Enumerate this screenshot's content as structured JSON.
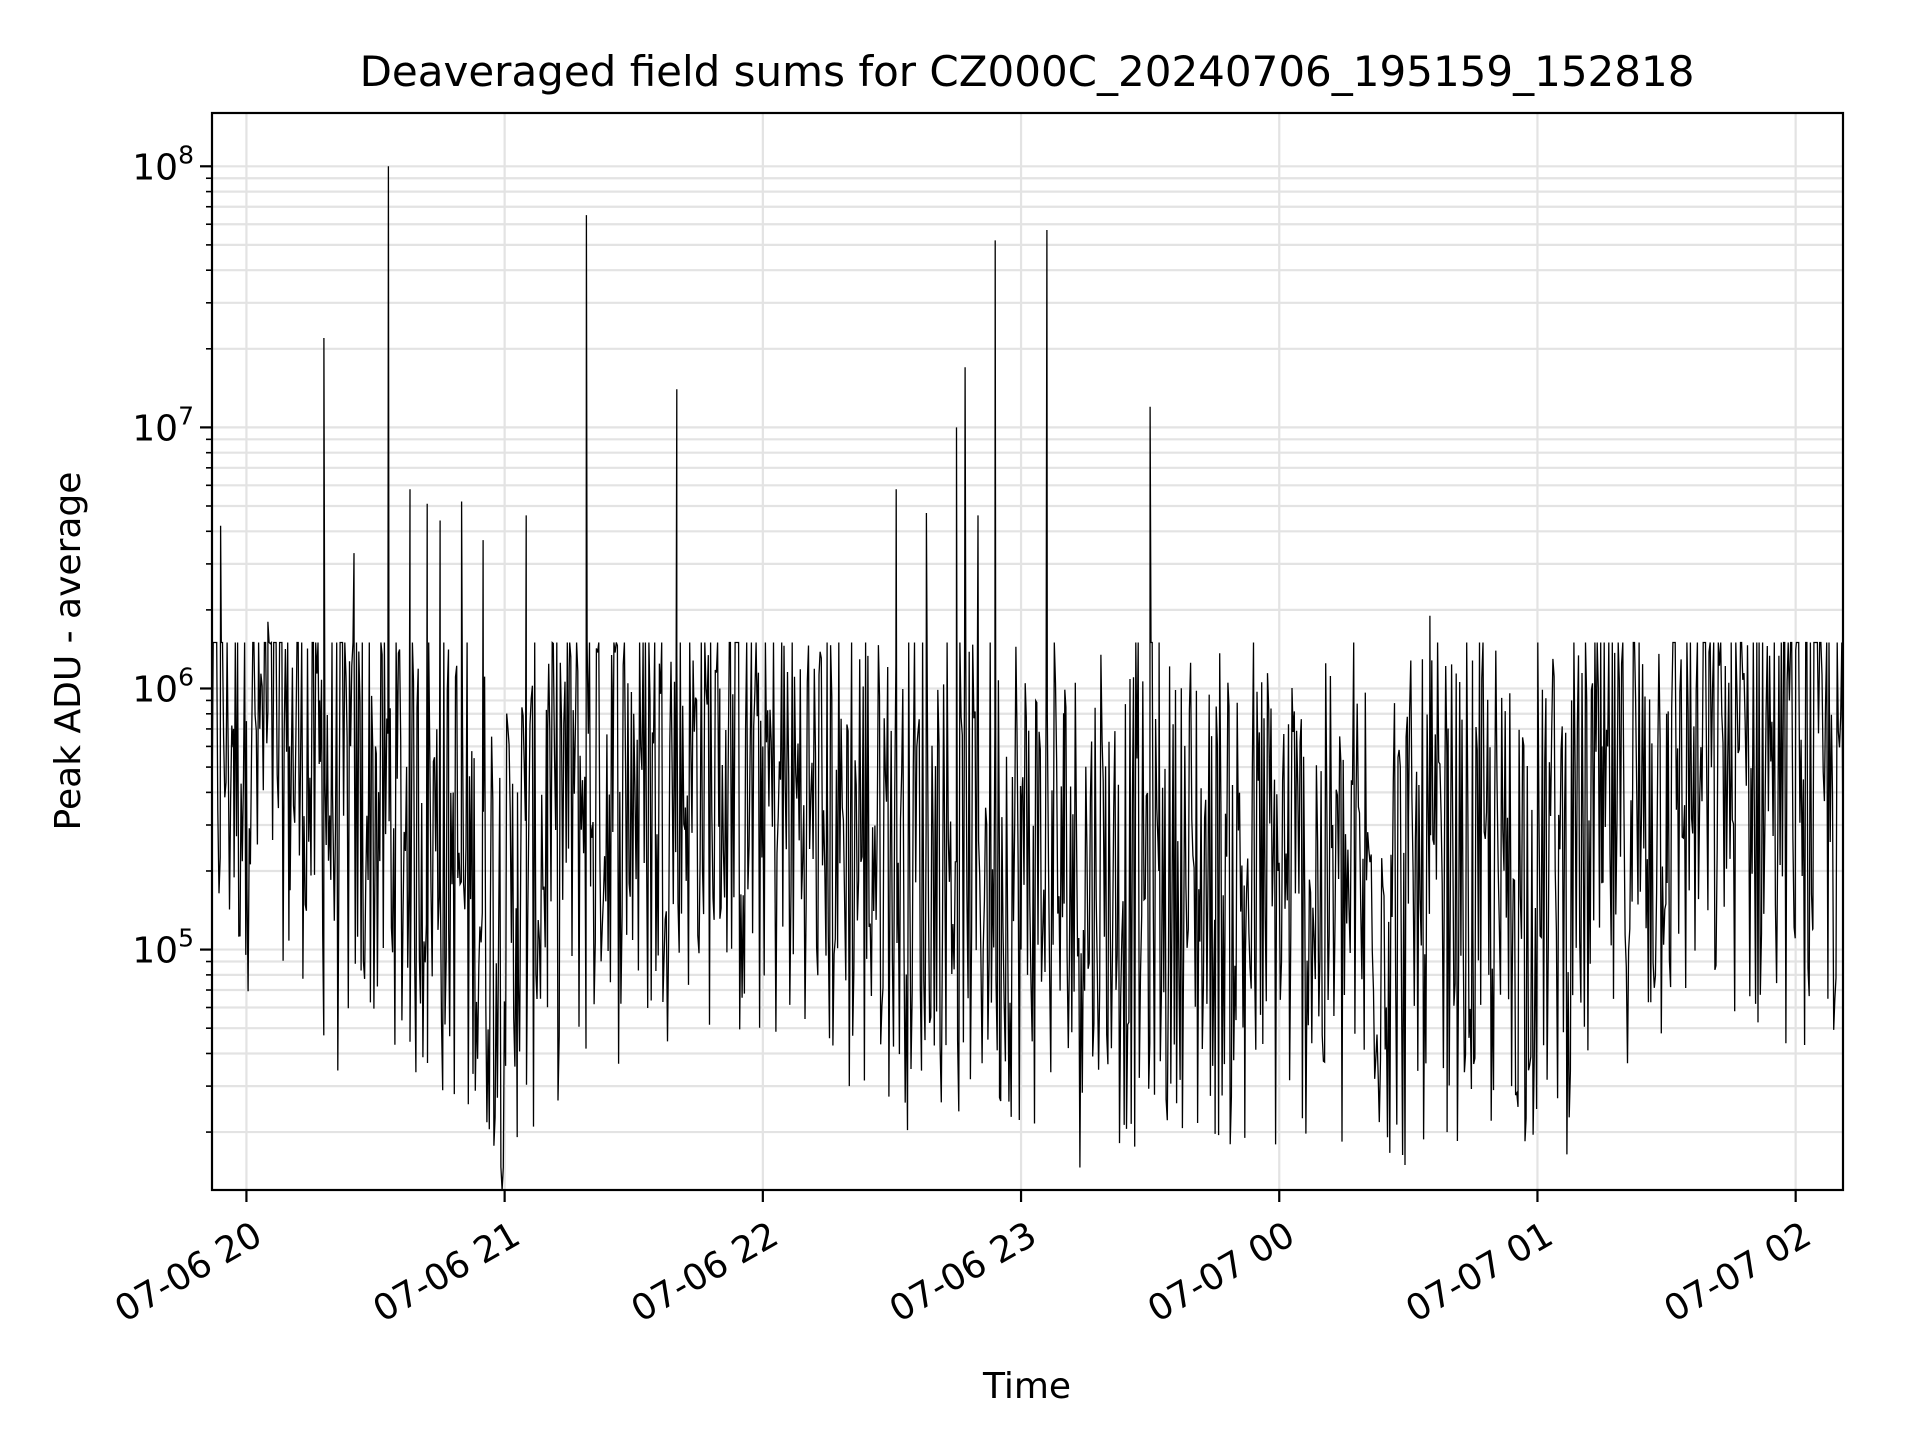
{
  "chart_data": {
    "type": "line",
    "title": "Deaveraged field sums for CZ000C_20240706_195159_152818",
    "xlabel": "Time",
    "ylabel": "Peak ADU - average",
    "yscale": "log",
    "xlim": [
      "2024-07-06 19:52",
      "2024-07-07 02:11"
    ],
    "ylim": [
      12000,
      160000000
    ],
    "x_ticks": [
      "07-06 20",
      "07-06 21",
      "07-06 22",
      "07-06 23",
      "07-07 00",
      "07-07 01",
      "07-07 02"
    ],
    "y_ticks": [
      {
        "base": "10",
        "exp": "5",
        "value": 100000
      },
      {
        "base": "10",
        "exp": "6",
        "value": 1000000
      },
      {
        "base": "10",
        "exp": "7",
        "value": 10000000
      },
      {
        "base": "10",
        "exp": "8",
        "value": 100000000
      }
    ],
    "grid": true,
    "line_color": "#000000",
    "series": [
      {
        "x": [
          "2024-07-06 19:52",
          "2024-07-06 19:54",
          "2024-07-06 19:57",
          "2024-07-06 19:58",
          "2024-07-06 20:00",
          "2024-07-06 20:05",
          "2024-07-06 20:10",
          "2024-07-06 20:13",
          "2024-07-06 20:17",
          "2024-07-06 20:18",
          "2024-07-06 20:20",
          "2024-07-06 20:25",
          "2024-07-06 20:27",
          "2024-07-06 20:30",
          "2024-07-06 20:33",
          "2024-07-06 20:34",
          "2024-07-06 20:35",
          "2024-07-06 20:38",
          "2024-07-06 20:40",
          "2024-07-06 20:42",
          "2024-07-06 20:45",
          "2024-07-06 20:47",
          "2024-07-06 20:50",
          "2024-07-06 20:55",
          "2024-07-06 21:00",
          "2024-07-06 21:03",
          "2024-07-06 21:05",
          "2024-07-06 21:10",
          "2024-07-06 21:15",
          "2024-07-06 21:19",
          "2024-07-06 21:20",
          "2024-07-06 21:25",
          "2024-07-06 21:30",
          "2024-07-06 21:40",
          "2024-07-06 21:42",
          "2024-07-06 21:50",
          "2024-07-06 22:00",
          "2024-07-06 22:15",
          "2024-07-06 22:30",
          "2024-07-06 22:31",
          "2024-07-06 22:38",
          "2024-07-06 22:40",
          "2024-07-06 22:45",
          "2024-07-06 22:47",
          "2024-07-06 22:50",
          "2024-07-06 22:54",
          "2024-07-06 22:55",
          "2024-07-06 23:00",
          "2024-07-06 23:06",
          "2024-07-06 23:10",
          "2024-07-06 23:30",
          "2024-07-06 23:32",
          "2024-07-06 23:45",
          "2024-07-06 23:52",
          "2024-07-07 00:00",
          "2024-07-07 00:15",
          "2024-07-07 00:30",
          "2024-07-07 00:35",
          "2024-07-07 00:39",
          "2024-07-07 00:45",
          "2024-07-07 00:54",
          "2024-07-07 01:00",
          "2024-07-07 01:15",
          "2024-07-07 01:30",
          "2024-07-07 01:45",
          "2024-07-07 02:00",
          "2024-07-07 02:04",
          "2024-07-07 02:11"
        ],
        "values": [
          800000,
          4200000,
          700000,
          850000,
          750000,
          1800000,
          600000,
          450000,
          900000,
          22000000,
          400000,
          3300000,
          300000,
          600000,
          100000000,
          130000,
          800000,
          5800000,
          300000,
          5100000,
          4400000,
          120000,
          5200000,
          3700000,
          60000,
          400000,
          4600000,
          700000,
          1200000,
          65000000,
          300000,
          1000000,
          800000,
          14000000,
          350000,
          1000000,
          600000,
          400000,
          200000,
          5800000,
          4700000,
          300000,
          10000000,
          17000000,
          4600000,
          52000000,
          200000,
          100000,
          57000000,
          150000,
          12000000,
          200000,
          130000,
          19000,
          200000,
          250000,
          150000,
          1900000,
          20000,
          120000,
          30000,
          300000,
          600000,
          800000,
          550000,
          1400000,
          120000,
          220000
        ]
      }
    ]
  }
}
